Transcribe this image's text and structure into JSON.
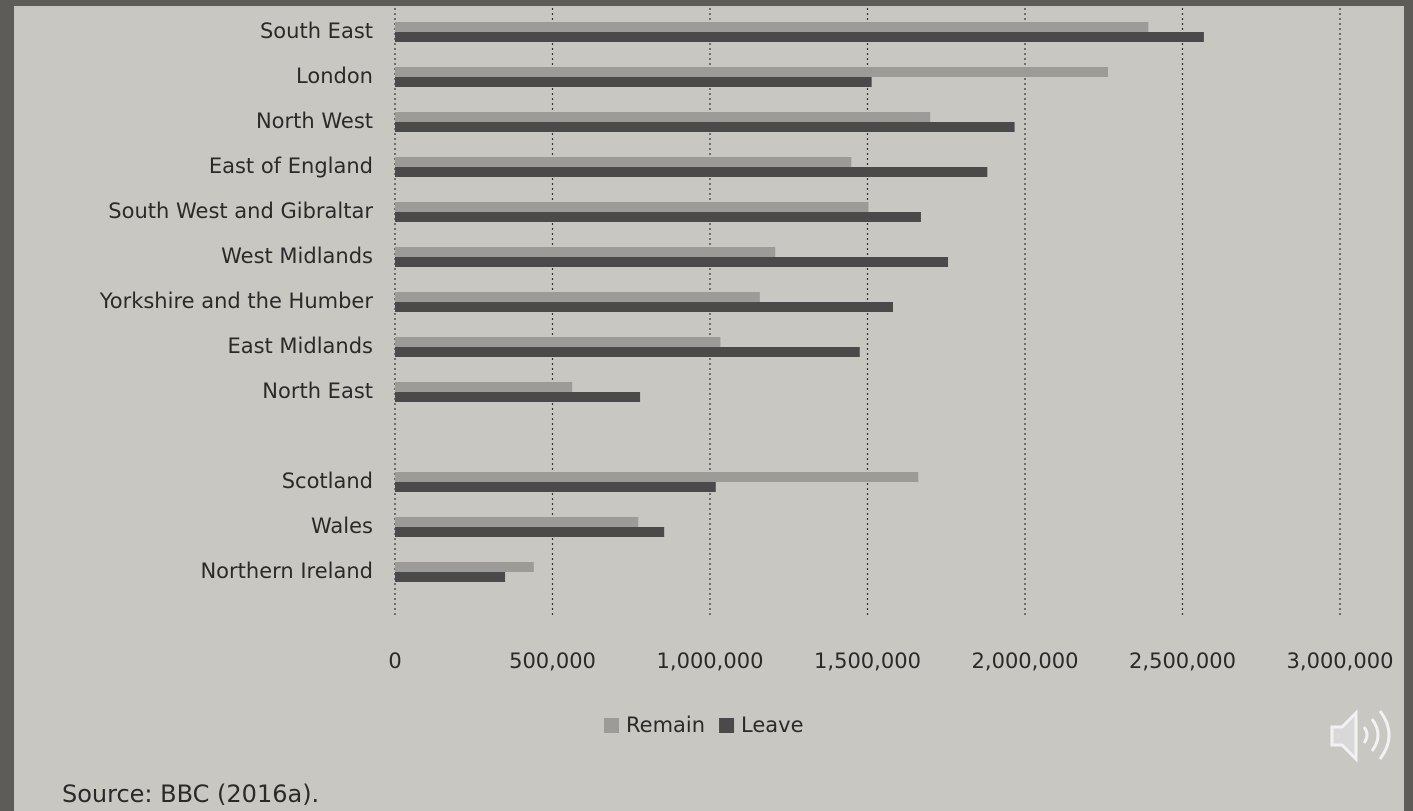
{
  "chart_data": {
    "type": "bar",
    "orientation": "horizontal",
    "categories": [
      "South East",
      "London",
      "North West",
      "East of England",
      "South West and Gibraltar",
      "West Midlands",
      "Yorkshire and the Humber",
      "East Midlands",
      "North East",
      "Scotland",
      "Wales",
      "Northern Ireland"
    ],
    "series": [
      {
        "name": "Remain",
        "color": "#9c9b98",
        "values": [
          2391718,
          2263519,
          1699020,
          1448616,
          1503019,
          1207175,
          1158298,
          1033036,
          562595,
          1661191,
          772347,
          440707
        ]
      },
      {
        "name": "Leave",
        "color": "#4a4a4a",
        "values": [
          2567965,
          1513232,
          1966925,
          1880367,
          1669711,
          1755687,
          1580937,
          1475479,
          778103,
          1018322,
          854572,
          349442
        ]
      }
    ],
    "xlim": [
      0,
      3000000
    ],
    "xticks": [
      0,
      {
        "value": 500000,
        "label": "500,000"
      },
      {
        "value": 1000000,
        "label": "1,000,000"
      },
      {
        "value": 1500000,
        "label": "1,500,000"
      },
      {
        "value": 2000000,
        "label": "2,000,000"
      },
      {
        "value": 2500000,
        "label": "2,500,000"
      },
      {
        "value": 3000000,
        "label": "3,000,000"
      }
    ],
    "grid": true,
    "legend": "bottom",
    "source": "Source: BBC (2016a)."
  }
}
